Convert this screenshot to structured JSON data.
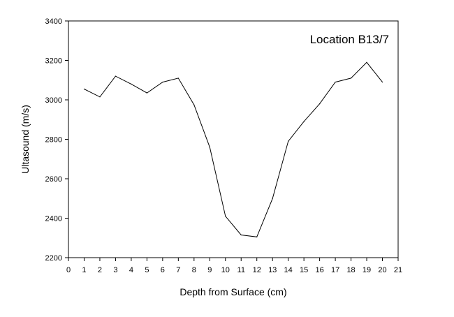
{
  "chart_data": {
    "type": "line",
    "title": "",
    "annotation": "Location B13/7",
    "xlabel": "Depth from Surface (cm)",
    "ylabel": "Ultasound (m/s)",
    "xlim": [
      0,
      21
    ],
    "ylim": [
      2200,
      3400
    ],
    "xticks": [
      "0",
      "1",
      "2",
      "3",
      "4",
      "5",
      "6",
      "7",
      "8",
      "9",
      "10",
      "11",
      "12",
      "13",
      "14",
      "15",
      "16",
      "17",
      "18",
      "19",
      "20",
      "21"
    ],
    "yticks": [
      "2200",
      "2400",
      "2600",
      "2800",
      "3000",
      "3200",
      "3400"
    ],
    "grid": false,
    "legend": "none",
    "line_color": "#000000",
    "series": [
      {
        "x": [
          1,
          2,
          3,
          4,
          5,
          6,
          7,
          8,
          9,
          10,
          11,
          12,
          13,
          14,
          15,
          16,
          17,
          18,
          19,
          20
        ],
        "y": [
          3055,
          3015,
          3120,
          3080,
          3035,
          3090,
          3110,
          2975,
          2760,
          2410,
          2315,
          2305,
          2500,
          2790,
          2890,
          2980,
          3090,
          3110,
          3190,
          3090
        ]
      }
    ]
  }
}
